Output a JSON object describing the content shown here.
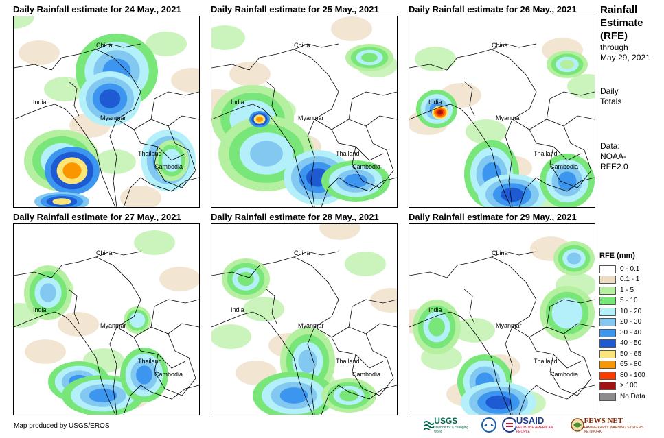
{
  "panels": [
    {
      "title": "Daily Rainfall estimate for 24 May., 2021",
      "labels": {
        "china": "China",
        "india": "India",
        "myanmar": "Myanmar",
        "thailand": "Thailand",
        "cambodia": "Cambodia"
      }
    },
    {
      "title": "Daily Rainfall estimate for 25 May., 2021",
      "labels": {
        "china": "China",
        "india": "India",
        "myanmar": "Myanmar",
        "thailand": "Thailand",
        "cambodia": "Cambodia"
      }
    },
    {
      "title": "Daily Rainfall estimate for 26 May., 2021",
      "labels": {
        "china": "China",
        "india": "India",
        "myanmar": "Myanmar",
        "thailand": "Thailand",
        "cambodia": "Cambodia"
      }
    },
    {
      "title": "Daily Rainfall estimate for 27 May., 2021",
      "labels": {
        "china": "China",
        "india": "India",
        "myanmar": "Myanmar",
        "thailand": "Thailand",
        "cambodia": "Cambodia"
      }
    },
    {
      "title": "Daily Rainfall estimate for 28 May., 2021",
      "labels": {
        "china": "China",
        "india": "India",
        "myanmar": "Myanmar",
        "thailand": "Thailand",
        "cambodia": "Cambodia"
      }
    },
    {
      "title": "Daily Rainfall estimate for 29 May., 2021",
      "labels": {
        "china": "China",
        "india": "India",
        "myanmar": "Myanmar",
        "thailand": "Thailand",
        "cambodia": "Cambodia"
      }
    }
  ],
  "side": {
    "title_line1": "Rainfall",
    "title_line2": "Estimate",
    "title_line3": "(RFE)",
    "through_label": "through",
    "through_date": "May 29, 2021",
    "totals_line1": "Daily",
    "totals_line2": "Totals",
    "data_line1": "Data:",
    "data_line2": "NOAA-",
    "data_line3": "RFE2.0"
  },
  "legend": {
    "title": "RFE (mm)",
    "items": [
      {
        "label": "0 - 0.1",
        "color": "#ffffff"
      },
      {
        "label": "0.1 - 1",
        "color": "#ecdcc0"
      },
      {
        "label": "1 - 5",
        "color": "#b4f0a0"
      },
      {
        "label": "5 - 10",
        "color": "#78e678"
      },
      {
        "label": "10 - 20",
        "color": "#b4f0fa"
      },
      {
        "label": "20 - 30",
        "color": "#82c8f0"
      },
      {
        "label": "30 - 40",
        "color": "#3c96f0"
      },
      {
        "label": "40 - 50",
        "color": "#1e5ad2"
      },
      {
        "label": "50 - 65",
        "color": "#fae678"
      },
      {
        "label": "65 - 80",
        "color": "#fa9600"
      },
      {
        "label": "80 - 100",
        "color": "#fa3c00"
      },
      {
        "label": "> 100",
        "color": "#a01414"
      },
      {
        "label": "No Data",
        "color": "#8c8c8c"
      }
    ]
  },
  "credit": "Map produced by USGS/EROS",
  "logos": {
    "usgs": "USGS",
    "usgs_tagline": "science for a changing world",
    "noaa": "NOAA",
    "usaid": "USAID",
    "usaid_tagline": "FROM THE AMERICAN PEOPLE",
    "fewsnet": "FEWS NET",
    "fewsnet_tagline": "FAMINE EARLY WARNING SYSTEMS NETWORK"
  }
}
